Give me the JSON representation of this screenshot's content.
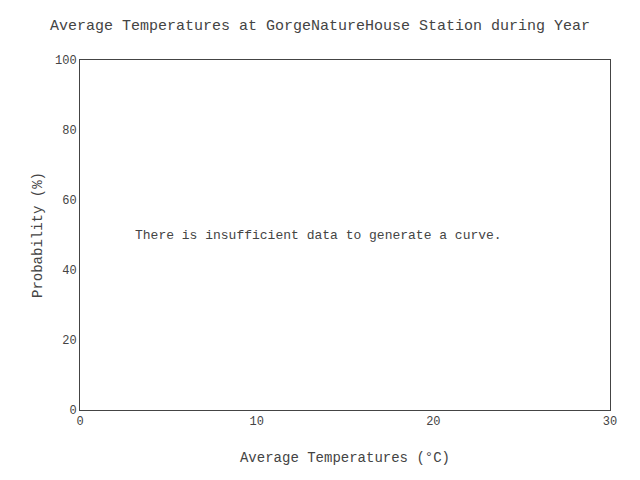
{
  "chart_data": {
    "type": "line",
    "title": "Average Temperatures at GorgeNatureHouse Station during Year",
    "xlabel": "Average Temperatures (°C)",
    "ylabel": "Probability (%)",
    "annotation": "There is insufficient data to generate a curve.",
    "xlim": [
      0,
      30
    ],
    "xticks": [
      0,
      10,
      20,
      30
    ],
    "ylim": [
      0,
      100
    ],
    "yticks": [
      0,
      20,
      40,
      60,
      80,
      100
    ],
    "series": [],
    "grid": false
  }
}
